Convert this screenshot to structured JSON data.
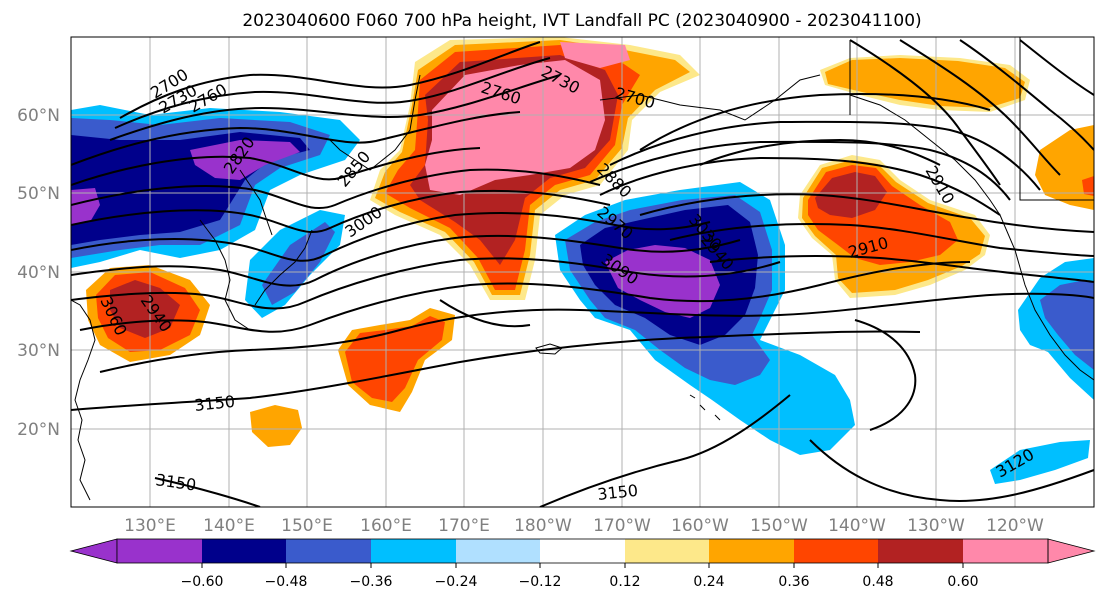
{
  "title": "2023040600 F060 700 hPa height, IVT Landfall PC (2023040900 - 2023041100)",
  "map": {
    "lat_labels": [
      "60°N",
      "50°N",
      "40°N",
      "30°N",
      "20°N"
    ],
    "lon_labels": [
      "130°E",
      "140°E",
      "150°E",
      "160°E",
      "170°E",
      "180°W",
      "170°W",
      "160°W",
      "150°W",
      "140°W",
      "130°W",
      "120°W"
    ],
    "contour_labels": [
      "2700",
      "2730",
      "2760",
      "2820",
      "2850",
      "3000",
      "2940",
      "3060",
      "3150",
      "3150",
      "3150",
      "2760",
      "2730",
      "2700",
      "2880",
      "2910",
      "2970",
      "3030",
      "3090",
      "2910",
      "2940",
      "3120"
    ]
  },
  "colorbar": {
    "ticks": [
      "−0.60",
      "−0.48",
      "−0.36",
      "−0.24",
      "−0.12",
      "0.12",
      "0.24",
      "0.36",
      "0.48",
      "0.60"
    ],
    "colors": [
      "#9932cc",
      "#00008b",
      "#3a5bcc",
      "#00bfff",
      "#b0e0ff",
      "#ffffff",
      "#fde88a",
      "#ffa500",
      "#ff4500",
      "#b22222",
      "#ff88aa"
    ]
  },
  "colors": {
    "purple": "#9932cc",
    "navy": "#00008b",
    "blue": "#3a5bcc",
    "cyan": "#00bfff",
    "lightblue": "#b0e0ff",
    "yellow": "#fde88a",
    "orange": "#ffa500",
    "redorange": "#ff4500",
    "darkred": "#b22222",
    "pink": "#ff88aa"
  }
}
